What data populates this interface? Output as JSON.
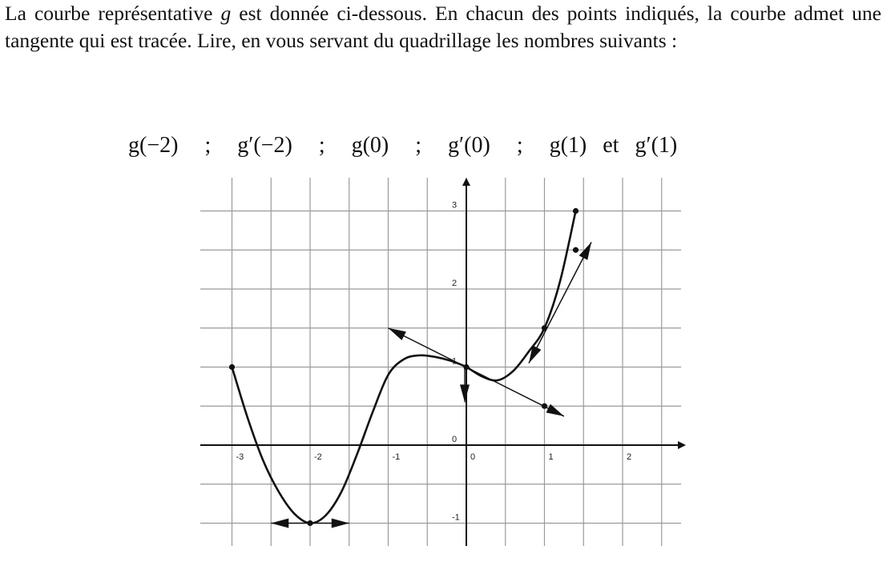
{
  "question": {
    "text_part1": "La courbe représentative ",
    "function_name": "g",
    "text_part2": " est donnée ci-dessous. En chacun des points indiqués, la courbe admet une tangente qui est tracée. Lire, en vous servant du quadrillage les nombres suivants :"
  },
  "formula": {
    "terms": [
      "g(−2)",
      "g′(−2)",
      "g(0)",
      "g′(0)",
      "g(1)",
      "g′(1)"
    ],
    "separator": ";",
    "conjunction": "et"
  },
  "chart_data": {
    "type": "line",
    "title": "",
    "xlabel": "",
    "ylabel": "",
    "xlim": [
      -3,
      2.5
    ],
    "ylim": [
      -1.25,
      3.15
    ],
    "grid": true,
    "x_tick_labels": [
      {
        "value": -3,
        "label": "-3"
      },
      {
        "value": -2,
        "label": "-2"
      },
      {
        "value": -1,
        "label": "-1"
      },
      {
        "value": 0,
        "label": "0"
      },
      {
        "value": 1,
        "label": "1"
      },
      {
        "value": 2,
        "label": "2"
      }
    ],
    "y_tick_labels": [
      {
        "value": -1,
        "label": "-1"
      },
      {
        "value": 0,
        "label": "0"
      },
      {
        "value": 2,
        "label": "2"
      },
      {
        "value": 3,
        "label": "3"
      }
    ],
    "y_tick_label_one": {
      "value": 1,
      "label": "1"
    },
    "curve": {
      "x": [
        -3,
        -2.8,
        -2.6,
        -2.4,
        -2.2,
        -2,
        -1.8,
        -1.6,
        -1.4,
        -1.2,
        -1,
        -0.8,
        -0.6,
        -0.4,
        -0.2,
        0,
        0.2,
        0.4,
        0.6,
        0.8,
        1,
        1.2,
        1.4
      ],
      "y": [
        1,
        0.35,
        -0.2,
        -0.6,
        -0.88,
        -1,
        -0.9,
        -0.6,
        -0.12,
        0.42,
        0.9,
        1.1,
        1.15,
        1.13,
        1.08,
        1,
        0.88,
        0.83,
        0.95,
        1.2,
        1.5,
        2.1,
        3
      ]
    },
    "points": [
      {
        "x": -3,
        "y": 1
      },
      {
        "x": -2,
        "y": -1
      },
      {
        "x": 0,
        "y": 1
      },
      {
        "x": 1,
        "y": 1.5
      },
      {
        "x": 1,
        "y": 0.5
      },
      {
        "x": 1.4,
        "y": 3
      },
      {
        "x": 1.4,
        "y": 2.5
      }
    ],
    "tangents": [
      {
        "at_x": -2,
        "from": [
          -2.5,
          -1
        ],
        "to": [
          -1.5,
          -1
        ],
        "arrows": "both"
      },
      {
        "at_x": 0,
        "from": [
          -1,
          1.5
        ],
        "to": [
          1.25,
          0.37
        ],
        "arrows": "both"
      },
      {
        "at_x": 1,
        "from": [
          0.8,
          1.05
        ],
        "to": [
          1.6,
          2.6
        ],
        "arrows": "both"
      }
    ],
    "vertical_arrow": {
      "x": 0.1,
      "from": 1,
      "to": 0.55
    }
  }
}
